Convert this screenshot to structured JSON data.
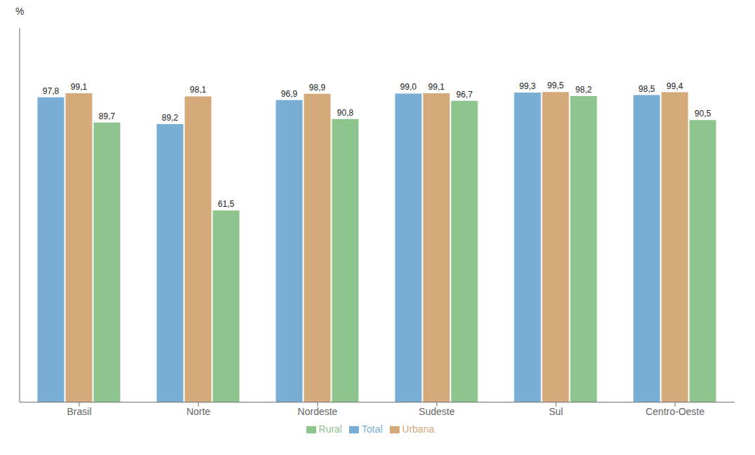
{
  "chart_data": {
    "type": "bar",
    "ylabel": "%",
    "categories": [
      "Brasil",
      "Norte",
      "Nordeste",
      "Sudeste",
      "Sul",
      "Centro-Oeste"
    ],
    "series": [
      {
        "name": "Total",
        "color": "#7aadd4",
        "values": [
          97.8,
          89.2,
          96.9,
          99.0,
          99.3,
          98.5
        ],
        "value_labels": [
          "97,8",
          "89,2",
          "96,9",
          "99,0",
          "99,3",
          "98,5"
        ]
      },
      {
        "name": "Urbana",
        "color": "#d4aa7a",
        "values": [
          99.1,
          98.1,
          98.9,
          99.1,
          99.5,
          99.4
        ],
        "value_labels": [
          "99,1",
          "98,1",
          "98,9",
          "99,1",
          "99,5",
          "99,4"
        ]
      },
      {
        "name": "Rural",
        "color": "#8ec48e",
        "values": [
          89.7,
          61.5,
          90.8,
          96.7,
          98.2,
          90.5
        ],
        "value_labels": [
          "89,7",
          "61,5",
          "90,8",
          "96,7",
          "98,2",
          "90,5"
        ]
      }
    ],
    "ylim": [
      0,
      120
    ],
    "grid": false,
    "legend": "bottom",
    "data_labels": true,
    "tick_labels": "x"
  }
}
